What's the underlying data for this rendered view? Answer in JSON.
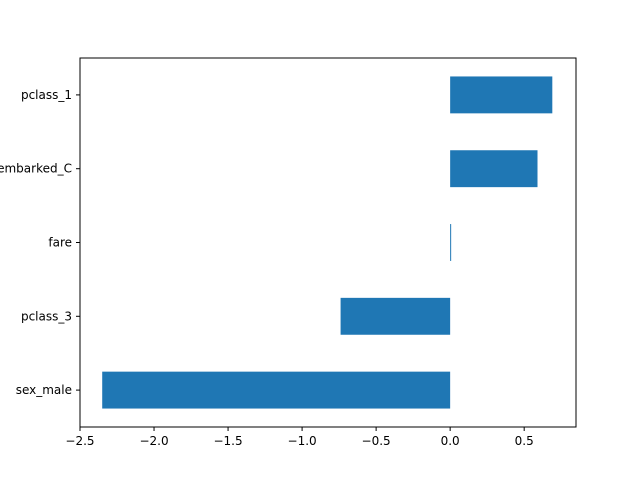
{
  "chart_data": {
    "type": "bar",
    "orientation": "horizontal",
    "categories": [
      "sex_male",
      "pclass_3",
      "fare",
      "embarked_C",
      "pclass_1"
    ],
    "values": [
      -2.35,
      -0.74,
      0.004,
      0.59,
      0.69
    ],
    "xticks": [
      -2.5,
      -2.0,
      -1.5,
      -1.0,
      -0.5,
      0.0,
      0.5
    ],
    "xtick_labels": [
      "−2.5",
      "−2.0",
      "−1.5",
      "−1.0",
      "−0.5",
      "0.0",
      "0.5"
    ],
    "xlim": [
      -2.5,
      0.85
    ],
    "title": "",
    "xlabel": "",
    "ylabel": "",
    "grid": false,
    "colors": {
      "bar": "#1f77b4",
      "axis": "#000000",
      "background": "#ffffff"
    }
  }
}
